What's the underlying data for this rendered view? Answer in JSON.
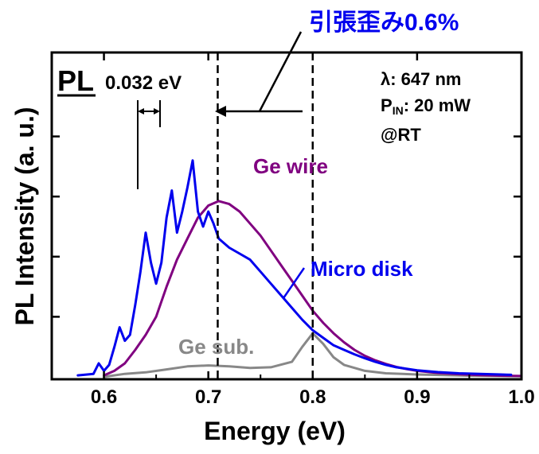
{
  "chart_data": {
    "type": "line",
    "xlabel": "Energy (eV)",
    "ylabel": "PL Intensity (a. u.)",
    "xlim": [
      0.55,
      1.0
    ],
    "ylim": [
      0,
      1.0
    ],
    "xticks": [
      "0.6",
      "0.7",
      "0.8",
      "0.9",
      "1.0"
    ],
    "grid": false,
    "series": [
      {
        "name": "Micro disk",
        "color": "#0000ee",
        "x": [
          0.575,
          0.59,
          0.595,
          0.6,
          0.605,
          0.61,
          0.615,
          0.62,
          0.625,
          0.63,
          0.635,
          0.64,
          0.645,
          0.65,
          0.655,
          0.66,
          0.665,
          0.67,
          0.675,
          0.68,
          0.685,
          0.69,
          0.695,
          0.7,
          0.705,
          0.71,
          0.72,
          0.73,
          0.74,
          0.75,
          0.76,
          0.77,
          0.78,
          0.79,
          0.8,
          0.81,
          0.82,
          0.83,
          0.84,
          0.85,
          0.86,
          0.87,
          0.88,
          0.9,
          0.92,
          0.94,
          0.96,
          0.98,
          0.99
        ],
        "values": [
          0.005,
          0.01,
          0.045,
          0.02,
          0.04,
          0.1,
          0.165,
          0.12,
          0.14,
          0.24,
          0.35,
          0.48,
          0.38,
          0.31,
          0.38,
          0.53,
          0.62,
          0.48,
          0.55,
          0.63,
          0.72,
          0.55,
          0.5,
          0.55,
          0.51,
          0.46,
          0.43,
          0.41,
          0.39,
          0.35,
          0.31,
          0.27,
          0.23,
          0.19,
          0.155,
          0.13,
          0.105,
          0.09,
          0.075,
          0.062,
          0.05,
          0.04,
          0.032,
          0.022,
          0.016,
          0.012,
          0.01,
          0.008,
          0.007
        ]
      },
      {
        "name": "Ge wire",
        "color": "#800080",
        "x": [
          0.6,
          0.61,
          0.62,
          0.63,
          0.64,
          0.65,
          0.66,
          0.67,
          0.68,
          0.69,
          0.7,
          0.71,
          0.72,
          0.73,
          0.74,
          0.75,
          0.76,
          0.77,
          0.78,
          0.79,
          0.8,
          0.81,
          0.82,
          0.83,
          0.84,
          0.85,
          0.86,
          0.87,
          0.88,
          0.89,
          0.9,
          0.92,
          0.94,
          0.96,
          0.98,
          1.0
        ],
        "values": [
          0.005,
          0.02,
          0.045,
          0.09,
          0.14,
          0.2,
          0.3,
          0.39,
          0.46,
          0.53,
          0.57,
          0.585,
          0.575,
          0.55,
          0.51,
          0.47,
          0.42,
          0.37,
          0.32,
          0.27,
          0.22,
          0.18,
          0.145,
          0.115,
          0.09,
          0.07,
          0.055,
          0.043,
          0.033,
          0.026,
          0.02,
          0.013,
          0.009,
          0.006,
          0.004,
          0.003
        ]
      },
      {
        "name": "Ge sub.",
        "color": "#888888",
        "x": [
          0.6,
          0.62,
          0.64,
          0.66,
          0.68,
          0.7,
          0.72,
          0.74,
          0.76,
          0.78,
          0.79,
          0.8,
          0.81,
          0.82,
          0.83,
          0.85,
          0.87,
          0.9,
          0.95,
          1.0
        ],
        "values": [
          0.0,
          0.01,
          0.015,
          0.025,
          0.035,
          0.038,
          0.035,
          0.03,
          0.032,
          0.05,
          0.1,
          0.145,
          0.11,
          0.065,
          0.04,
          0.02,
          0.012,
          0.008,
          0.004,
          0.002
        ]
      }
    ],
    "vlines": [
      0.709,
      0.8
    ],
    "annotations": {
      "title_jp": "引張歪み0.6%",
      "pl_label": "PL",
      "spacing": "0.032 eV",
      "lambda_line": "λ: 647 nm",
      "pin_label": "P",
      "pin_sub": "IN",
      "pin_value": ": 20 mW",
      "rt": "@RT"
    },
    "series_labels": {
      "ge_wire": "Ge wire",
      "micro_disk": "Micro disk",
      "ge_sub": "Ge sub."
    }
  }
}
